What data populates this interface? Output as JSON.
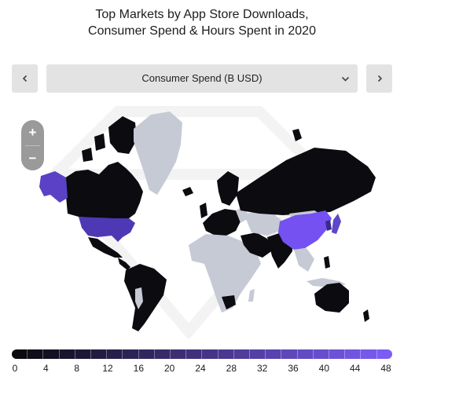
{
  "title_line1": "Top Markets by App Store Downloads,",
  "title_line2": "Consumer Spend & Hours Spent in 2020",
  "selector": {
    "label": "Consumer Spend (B USD)",
    "icon": "chevron-down-icon"
  },
  "nav": {
    "prev_icon": "chevron-left-icon",
    "next_icon": "chevron-right-icon"
  },
  "zoom": {
    "in_label": "+",
    "out_label": "−"
  },
  "colors": {
    "no_data": "#c6cad5",
    "scale_min": "#0a0a0f",
    "scale_max": "#7b5cf5",
    "china": "#7451f0",
    "usa": "#4e38b3",
    "alaska": "#5a41c6",
    "japan": "#5e47c8",
    "other_low": "#08080c"
  },
  "legend": {
    "ticks": [
      "0",
      "4",
      "8",
      "12",
      "16",
      "20",
      "24",
      "28",
      "32",
      "36",
      "40",
      "44",
      "48"
    ],
    "min": 0,
    "max": 48
  }
}
